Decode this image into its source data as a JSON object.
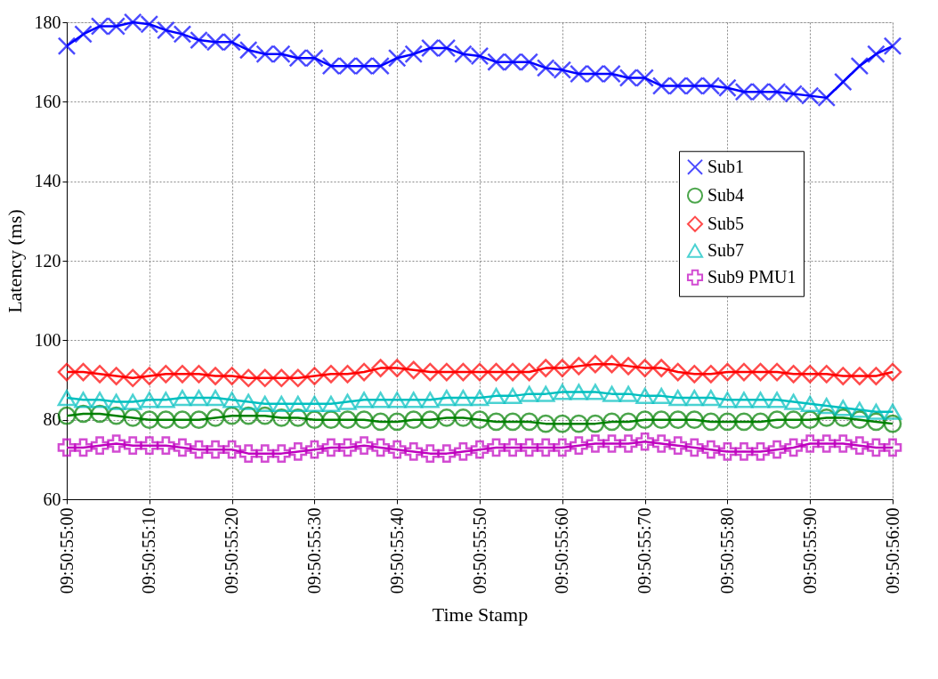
{
  "chart_data": {
    "type": "line",
    "xlabel": "Time Stamp",
    "ylabel": "Latency (ms)",
    "categories": [
      "09:50:55:00",
      null,
      null,
      null,
      null,
      "09:50:55:10",
      null,
      null,
      null,
      null,
      "09:50:55:20",
      null,
      null,
      null,
      null,
      "09:50:55:30",
      null,
      null,
      null,
      null,
      "09:50:55:40",
      null,
      null,
      null,
      null,
      "09:50:55:50",
      null,
      null,
      null,
      null,
      "09:50:55:60",
      null,
      null,
      null,
      null,
      "09:50:55:70",
      null,
      null,
      null,
      null,
      "09:50:55:80",
      null,
      null,
      null,
      null,
      "09:50:55:90",
      null,
      null,
      null,
      null,
      "09:50:56:00"
    ],
    "series": [
      {
        "name": "Sub1",
        "color": "#0000ff",
        "marker": "x",
        "values": [
          174,
          177,
          179,
          179,
          180,
          179.5,
          178,
          177,
          175.5,
          175,
          175,
          173,
          172,
          172,
          171,
          171,
          169,
          169,
          169,
          169,
          171,
          172,
          173.5,
          173.5,
          172,
          171.5,
          170,
          170,
          170,
          168.5,
          168,
          167,
          167,
          167,
          166,
          166,
          164,
          164,
          164,
          164,
          163.5,
          162.5,
          162.5,
          162.5,
          162,
          161.5,
          161,
          165,
          169,
          172,
          174
        ]
      },
      {
        "name": "Sub4",
        "color": "#008000",
        "marker": "circle",
        "values": [
          81,
          81.5,
          81.5,
          81,
          80.5,
          80,
          80,
          80,
          80,
          80.5,
          81,
          81,
          81,
          80.5,
          80.5,
          80,
          80,
          80,
          80,
          79.5,
          79.5,
          80,
          80,
          80.5,
          80.5,
          80,
          79.5,
          79.5,
          79.5,
          79,
          79,
          79,
          79,
          79.5,
          79.5,
          80,
          80,
          80,
          80,
          79.5,
          79.5,
          79.5,
          79.5,
          80,
          80,
          80,
          80.5,
          80.5,
          80,
          79.5,
          79
        ]
      },
      {
        "name": "Sub5",
        "color": "#ff0000",
        "marker": "diamond",
        "values": [
          92,
          92,
          91.5,
          91,
          90.5,
          91,
          91.5,
          91.5,
          91.5,
          91,
          91,
          90.5,
          90.5,
          90.5,
          90.5,
          91,
          91.5,
          91.5,
          92,
          93,
          93,
          92.5,
          92,
          92,
          92,
          92,
          92,
          92,
          92,
          93,
          93,
          93.5,
          94,
          94,
          93.5,
          93,
          93,
          92,
          91.5,
          91.5,
          92,
          92,
          92,
          92,
          91.5,
          91.5,
          91.5,
          91,
          91,
          91,
          92
        ]
      },
      {
        "name": "Sub7",
        "color": "#00bfbf",
        "marker": "triangle",
        "values": [
          85.5,
          85,
          85,
          84.5,
          84.5,
          85,
          85,
          85.5,
          85.5,
          85.5,
          85,
          84.5,
          84,
          84,
          84,
          84,
          84,
          84.5,
          85,
          85,
          85,
          85,
          85,
          85.5,
          85.5,
          85.5,
          86,
          86,
          86.5,
          86.5,
          87,
          87,
          87,
          86.5,
          86.5,
          86,
          86,
          85.5,
          85.5,
          85.5,
          85,
          85,
          85,
          85,
          84.5,
          84,
          83.5,
          83,
          82.5,
          82,
          82
        ]
      },
      {
        "name": "Sub9 PMU1",
        "color": "#bf00bf",
        "marker": "cross",
        "values": [
          73,
          73,
          73.5,
          74,
          73.5,
          73.5,
          73.5,
          73,
          72.5,
          72.5,
          72.5,
          71.5,
          71.5,
          71.5,
          72,
          72.5,
          73,
          73,
          73.5,
          73,
          72.5,
          72,
          71.5,
          71.5,
          72,
          72.5,
          73,
          73,
          73,
          73,
          73,
          73.5,
          74,
          74,
          74,
          74.5,
          74,
          73.5,
          73,
          72.5,
          72,
          72,
          72,
          72.5,
          73,
          74,
          74,
          74,
          73.5,
          73,
          73
        ]
      }
    ],
    "ylim": [
      60,
      180
    ],
    "yticks": [
      60,
      80,
      100,
      120,
      140,
      160,
      180
    ],
    "grid": true,
    "legend": "right",
    "line_style": "solid"
  }
}
